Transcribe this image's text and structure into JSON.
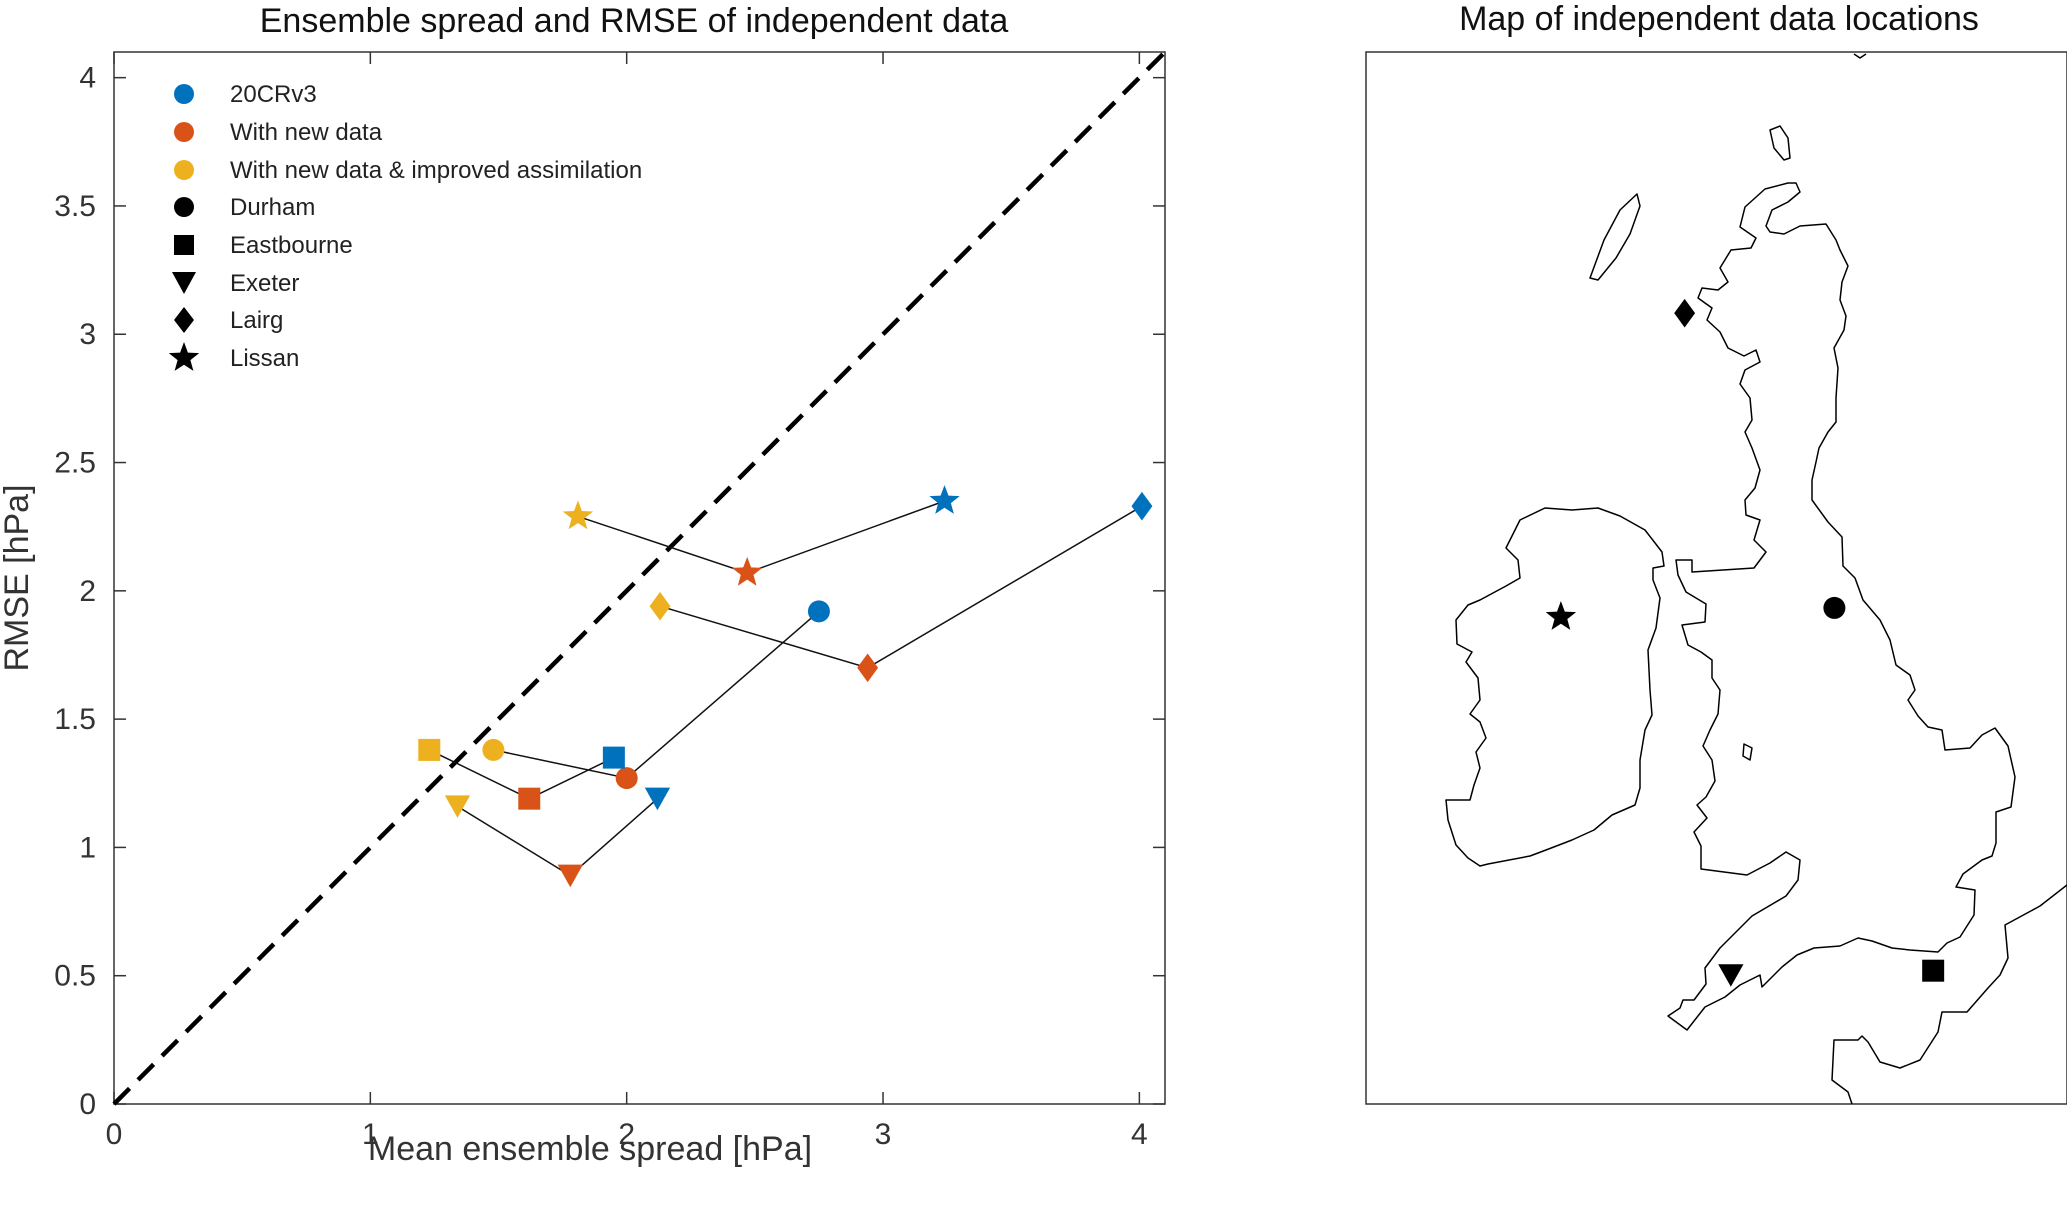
{
  "chart_data": [
    {
      "type": "scatter",
      "title": "Ensemble spread and RMSE of independent data",
      "xlabel": "Mean ensemble spread [hPa]",
      "ylabel": "RMSE [hPa]",
      "xlim": [
        0,
        4.1
      ],
      "ylim": [
        0,
        4.1
      ],
      "xticks": [
        0,
        1,
        2,
        3,
        4
      ],
      "xtick_labels": [
        "0",
        "1",
        "2",
        "3",
        "4"
      ],
      "yticks": [
        0,
        0.5,
        1,
        1.5,
        2,
        2.5,
        3,
        3.5,
        4
      ],
      "ytick_labels": [
        "0",
        "0.5",
        "1",
        "1.5",
        "2",
        "2.5",
        "3",
        "3.5",
        "4"
      ],
      "reference_line": "y = x (dashed)",
      "legend_position": "top-left",
      "datasets": [
        {
          "name": "20CRv3",
          "color": "#0072BD"
        },
        {
          "name": "With new data",
          "color": "#D95319"
        },
        {
          "name": "With new data & improved assimilation",
          "color": "#EDB120"
        }
      ],
      "stations": [
        {
          "name": "Durham",
          "marker": "circle",
          "points": {
            "20CRv3": [
              2.75,
              1.92
            ],
            "With new data": [
              2.0,
              1.27
            ],
            "With new data & improved assimilation": [
              1.48,
              1.38
            ]
          }
        },
        {
          "name": "Eastbourne",
          "marker": "square",
          "points": {
            "20CRv3": [
              1.95,
              1.35
            ],
            "With new data": [
              1.62,
              1.19
            ],
            "With new data & improved assimilation": [
              1.23,
              1.38
            ]
          }
        },
        {
          "name": "Exeter",
          "marker": "triangle-down",
          "points": {
            "20CRv3": [
              2.12,
              1.19
            ],
            "With new data": [
              1.78,
              0.89
            ],
            "With new data & improved assimilation": [
              1.34,
              1.16
            ]
          }
        },
        {
          "name": "Lairg",
          "marker": "diamond",
          "points": {
            "20CRv3": [
              4.01,
              2.33
            ],
            "With new data": [
              2.94,
              1.7
            ],
            "With new data & improved assimilation": [
              2.13,
              1.94
            ]
          }
        },
        {
          "name": "Lissan",
          "marker": "star",
          "points": {
            "20CRv3": [
              3.24,
              2.35
            ],
            "With new data": [
              2.47,
              2.07
            ],
            "With new data & improved assimilation": [
              1.81,
              2.29
            ]
          }
        }
      ]
    },
    {
      "type": "map",
      "title": "Map of independent data locations",
      "region": "United Kingdom and Ireland coastline",
      "stations": [
        {
          "name": "Durham",
          "marker": "circle",
          "lon": -1.58,
          "lat": 54.77
        },
        {
          "name": "Eastbourne",
          "marker": "square",
          "lon": 0.28,
          "lat": 50.77
        },
        {
          "name": "Exeter",
          "marker": "triangle-down",
          "lon": -3.53,
          "lat": 50.72
        },
        {
          "name": "Lairg",
          "marker": "diamond",
          "lon": -4.4,
          "lat": 58.02
        },
        {
          "name": "Lissan",
          "marker": "star",
          "lon": -6.73,
          "lat": 54.67
        }
      ]
    }
  ],
  "legend": {
    "datasets": [
      "20CRv3",
      "With new data",
      "With new data & improved assimilation"
    ],
    "stations": [
      "Durham",
      "Eastbourne",
      "Exeter",
      "Lairg",
      "Lissan"
    ]
  },
  "colors": {
    "20CRv3": "#0072BD",
    "new_data": "#D95319",
    "improved": "#EDB120",
    "ink": "#000000"
  }
}
